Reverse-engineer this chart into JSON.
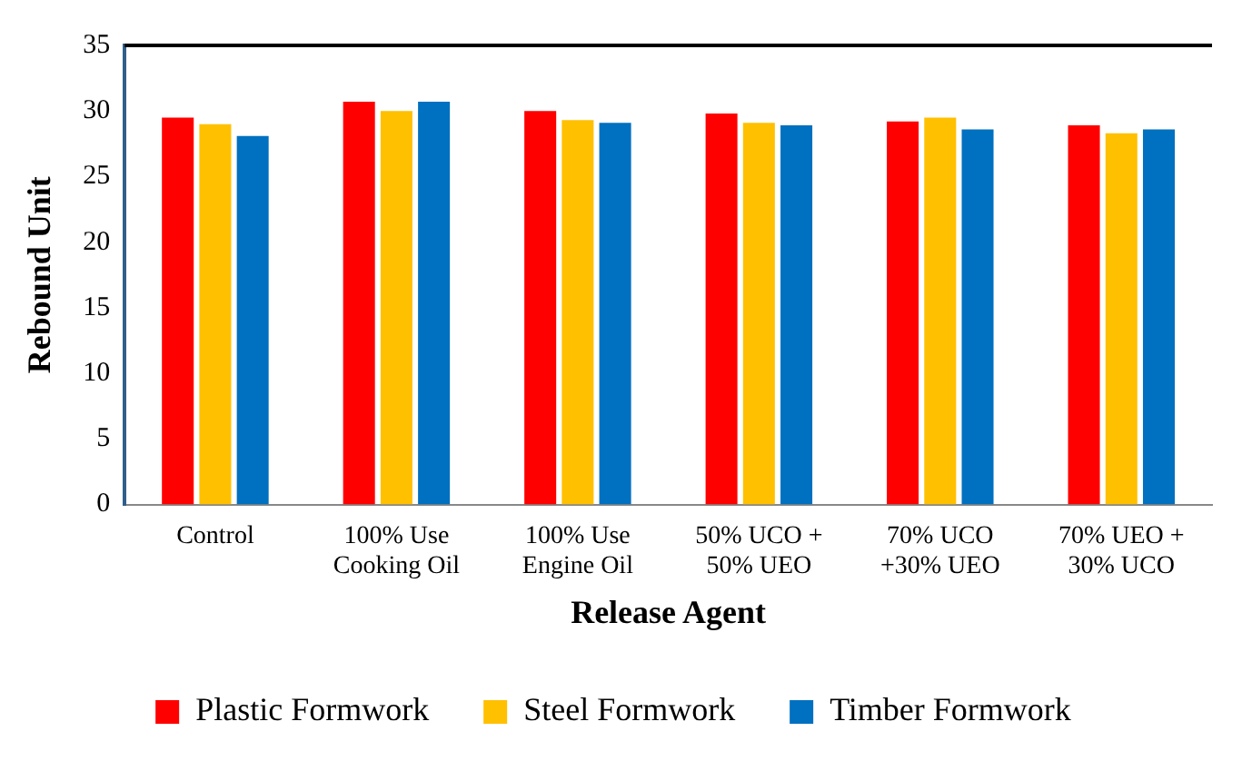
{
  "chart_data": {
    "type": "bar",
    "xlabel": "Release Agent",
    "ylabel": "Rebound Unit",
    "categories": [
      "Control",
      "100% Use\nCooking Oil",
      "100% Use\nEngine Oil",
      "50% UCO +\n50% UEO",
      "70% UCO\n+30% UEO",
      "70% UEO +\n30% UCO"
    ],
    "series": [
      {
        "name": "Plastic Formwork",
        "color": "#ff0000",
        "values": [
          29.5,
          30.7,
          30.0,
          29.8,
          29.2,
          28.9
        ]
      },
      {
        "name": "Steel Formwork",
        "color": "#ffc000",
        "values": [
          29.0,
          30.0,
          29.3,
          29.1,
          29.5,
          28.3
        ]
      },
      {
        "name": "Timber Formwork",
        "color": "#0070c0",
        "values": [
          28.1,
          30.7,
          29.1,
          28.9,
          28.6,
          28.6
        ]
      }
    ],
    "ylim": [
      0,
      35
    ],
    "yticks": [
      0,
      5,
      10,
      15,
      20,
      25,
      30,
      35
    ],
    "grid": false,
    "legend": "bottom"
  }
}
